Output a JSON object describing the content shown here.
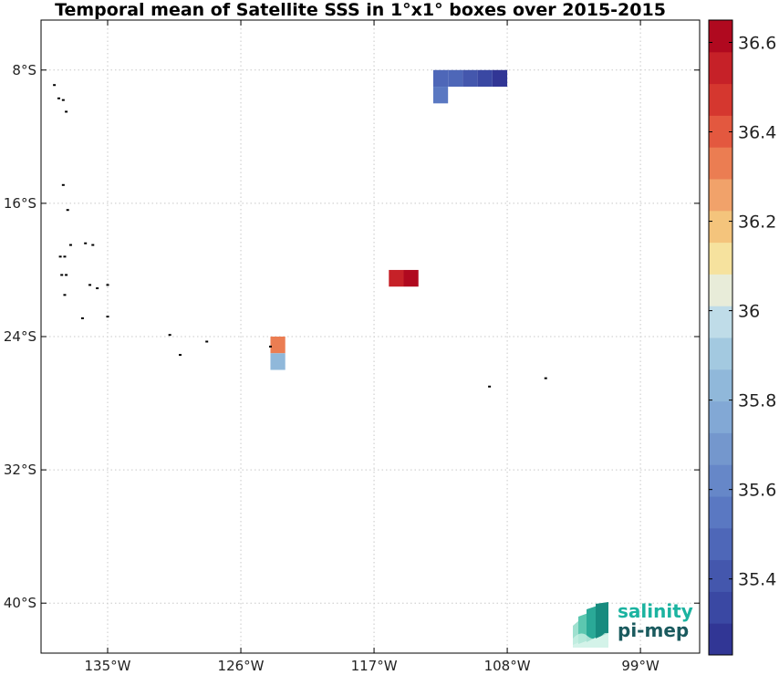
{
  "title": "Temporal mean of Satellite SSS in 1°x1° boxes over 2015-2015",
  "map": {
    "lon_range": [
      -139.5,
      -95
    ],
    "lat_range": [
      -43,
      -5
    ],
    "lon_ticks": [
      -135,
      -126,
      -117,
      -108,
      -99
    ],
    "lat_ticks": [
      -8,
      -16,
      -24,
      -32,
      -40
    ],
    "lon_tick_labels": [
      "135°W",
      "126°W",
      "117°W",
      "108°W",
      "99°W"
    ],
    "lat_tick_labels": [
      "8°S",
      "16°S",
      "24°S",
      "32°S",
      "40°S"
    ],
    "grid": true
  },
  "chart_data": {
    "type": "heatmap",
    "title": "Temporal mean of Satellite SSS in 1°x1° boxes over 2015-2015",
    "value_range": [
      35.23,
      36.65
    ],
    "boxes": [
      {
        "lon": [
          -113,
          -112
        ],
        "lat": [
          -8.0,
          -9.0
        ],
        "value": 35.45
      },
      {
        "lon": [
          -112,
          -111
        ],
        "lat": [
          -8.0,
          -9.0
        ],
        "value": 35.45
      },
      {
        "lon": [
          -111,
          -110
        ],
        "lat": [
          -8.0,
          -9.0
        ],
        "value": 35.4
      },
      {
        "lon": [
          -110,
          -109
        ],
        "lat": [
          -8.0,
          -9.0
        ],
        "value": 35.35
      },
      {
        "lon": [
          -109,
          -108
        ],
        "lat": [
          -8.0,
          -9.0
        ],
        "value": 35.3
      },
      {
        "lon": [
          -113,
          -112
        ],
        "lat": [
          -9.0,
          -10.0
        ],
        "value": 35.55
      },
      {
        "lon": [
          -116,
          -115
        ],
        "lat": [
          -20.0,
          -21.0
        ],
        "value": 36.55
      },
      {
        "lon": [
          -115,
          -114
        ],
        "lat": [
          -20.0,
          -21.0
        ],
        "value": 36.6
      },
      {
        "lon": [
          -124,
          -123
        ],
        "lat": [
          -24.0,
          -25.0
        ],
        "value": 36.3
      },
      {
        "lon": [
          -124,
          -123
        ],
        "lat": [
          -25.0,
          -26.0
        ],
        "value": 35.85
      }
    ]
  },
  "colorbar": {
    "colors": [
      "#313695",
      "#3a48a3",
      "#4457ad",
      "#4e67b8",
      "#5a78c2",
      "#6687c8",
      "#7497cd",
      "#82a8d5",
      "#90b8da",
      "#a3c9e0",
      "#bfdce8",
      "#e8ecd9",
      "#f6e29e",
      "#f4c47c",
      "#f1a26a",
      "#eb7d52",
      "#e3583f",
      "#d5372f",
      "#c62128",
      "#b0091f"
    ],
    "ticks": [
      35.4,
      35.6,
      35.8,
      36,
      36.2,
      36.4,
      36.6
    ],
    "tick_labels": [
      "35.4",
      "35.6",
      "35.8",
      "36",
      "36.2",
      "36.4",
      "36.6"
    ]
  },
  "islands": [
    {
      "lon": -138.6,
      "lat": -8.9
    },
    {
      "lon": -138.3,
      "lat": -9.7
    },
    {
      "lon": -138.0,
      "lat": -9.8
    },
    {
      "lon": -137.8,
      "lat": -10.5
    },
    {
      "lon": -138.0,
      "lat": -14.9
    },
    {
      "lon": -137.7,
      "lat": -16.4
    },
    {
      "lon": -137.5,
      "lat": -18.5
    },
    {
      "lon": -136.5,
      "lat": -18.4
    },
    {
      "lon": -136.0,
      "lat": -18.5
    },
    {
      "lon": -138.2,
      "lat": -19.2
    },
    {
      "lon": -137.9,
      "lat": -19.2
    },
    {
      "lon": -138.1,
      "lat": -20.3
    },
    {
      "lon": -137.8,
      "lat": -20.3
    },
    {
      "lon": -136.2,
      "lat": -20.9
    },
    {
      "lon": -135.7,
      "lat": -21.1
    },
    {
      "lon": -135.0,
      "lat": -20.9
    },
    {
      "lon": -137.9,
      "lat": -21.5
    },
    {
      "lon": -136.7,
      "lat": -22.9
    },
    {
      "lon": -135.0,
      "lat": -22.8
    },
    {
      "lon": -130.8,
      "lat": -23.9
    },
    {
      "lon": -130.1,
      "lat": -25.1
    },
    {
      "lon": -128.3,
      "lat": -24.3
    },
    {
      "lon": -124.0,
      "lat": -24.6
    },
    {
      "lon": -109.2,
      "lat": -27.0
    },
    {
      "lon": -105.4,
      "lat": -26.5
    }
  ],
  "logo": {
    "line1": "salinity",
    "line2": "pi-mep"
  }
}
